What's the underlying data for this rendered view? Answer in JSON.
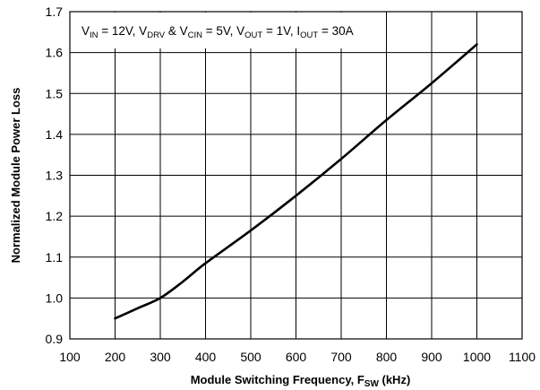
{
  "chart_data": {
    "type": "line",
    "xlabel": "Module Switching Frequency, F",
    "xlabel_sub": "SW",
    "xlabel_unit": " (kHz)",
    "ylabel": "Normalized Module Power Loss",
    "xlim": [
      100,
      1100
    ],
    "ylim": [
      0.9,
      1.7
    ],
    "x_ticks": [
      100,
      200,
      300,
      400,
      500,
      600,
      700,
      800,
      900,
      1000,
      1100
    ],
    "y_ticks": [
      "0.9",
      "1.0",
      "1.1",
      "1.2",
      "1.3",
      "1.4",
      "1.5",
      "1.6",
      "1.7"
    ],
    "grid": true,
    "annotation": {
      "parts": [
        {
          "t": "V",
          "sub": false
        },
        {
          "t": "IN",
          "sub": true
        },
        {
          "t": " = 12V, V",
          "sub": false
        },
        {
          "t": "DRV",
          "sub": true
        },
        {
          "t": " & V",
          "sub": false
        },
        {
          "t": "CIN",
          "sub": true
        },
        {
          "t": " = 5V, V",
          "sub": false
        },
        {
          "t": "OUT",
          "sub": true
        },
        {
          "t": " = 1V, I",
          "sub": false
        },
        {
          "t": "OUT",
          "sub": true
        },
        {
          "t": " = 30A",
          "sub": false
        }
      ]
    },
    "series": [
      {
        "x": [
          200,
          250,
          300,
          350,
          400,
          500,
          600,
          700,
          800,
          900,
          1000
        ],
        "y": [
          0.95,
          0.975,
          1.0,
          1.04,
          1.085,
          1.165,
          1.25,
          1.34,
          1.435,
          1.525,
          1.62
        ]
      }
    ]
  }
}
